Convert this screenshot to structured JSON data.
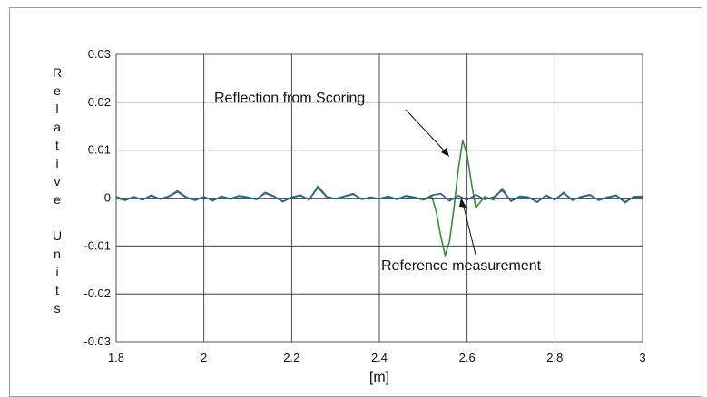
{
  "chart_data": {
    "type": "line",
    "xlabel": "[m]",
    "ylabel": "Relative Units",
    "xlim": [
      1.8,
      3.0
    ],
    "ylim": [
      -0.03,
      0.03
    ],
    "xticks": [
      "1.8",
      "2",
      "2.2",
      "2.4",
      "2.6",
      "2.8",
      "3"
    ],
    "yticks": [
      "0.03",
      "0.02",
      "0.01",
      "0",
      "-0.01",
      "-0.02",
      "-0.03"
    ],
    "grid": true,
    "annotations": [
      {
        "text": "Reflection from Scoring",
        "x": 2.59,
        "y": 0.009
      },
      {
        "text": "Reference measurement",
        "x": 2.56,
        "y": -0.001
      }
    ],
    "series": [
      {
        "color": "#3c8a3c",
        "x": [
          1.8,
          1.82,
          1.84,
          1.86,
          1.88,
          1.9,
          1.92,
          1.94,
          1.96,
          1.98,
          2.0,
          2.02,
          2.04,
          2.06,
          2.08,
          2.1,
          2.12,
          2.14,
          2.16,
          2.18,
          2.2,
          2.22,
          2.24,
          2.26,
          2.28,
          2.3,
          2.32,
          2.34,
          2.36,
          2.38,
          2.4,
          2.42,
          2.44,
          2.46,
          2.48,
          2.5,
          2.52,
          2.53,
          2.54,
          2.55,
          2.56,
          2.57,
          2.58,
          2.59,
          2.6,
          2.61,
          2.62,
          2.64,
          2.66,
          2.68,
          2.7,
          2.72,
          2.74,
          2.76,
          2.78,
          2.8,
          2.82,
          2.84,
          2.86,
          2.88,
          2.9,
          2.92,
          2.94,
          2.96,
          2.98,
          3.0
        ],
        "y": [
          0.0,
          -0.0005,
          0.0003,
          -0.0004,
          0.0006,
          -0.0002,
          0.0004,
          0.0015,
          0.0002,
          -0.0005,
          0.0003,
          -0.0006,
          0.0004,
          -0.0002,
          0.0005,
          0.0002,
          -0.0003,
          0.0012,
          0.0004,
          -0.0008,
          0.0002,
          0.0006,
          -0.0004,
          0.0025,
          0.0003,
          -0.0002,
          0.0004,
          0.0009,
          -0.0003,
          0.0002,
          -0.0002,
          0.0004,
          -0.0003,
          0.0005,
          0.0002,
          -0.0004,
          0.0003,
          -0.003,
          -0.008,
          -0.012,
          -0.009,
          -0.002,
          0.006,
          0.012,
          0.009,
          0.003,
          -0.002,
          0.0003,
          -0.0004,
          0.002,
          -0.0007,
          0.0004,
          0.0002,
          -0.0009,
          0.0006,
          -0.0004,
          0.0012,
          -0.0005,
          0.0003,
          0.0007,
          -0.0005,
          0.0002,
          0.0006,
          -0.001,
          0.0003,
          0.0004
        ]
      },
      {
        "color": "#2f5f8a",
        "x": [
          1.8,
          1.82,
          1.84,
          1.86,
          1.88,
          1.9,
          1.92,
          1.94,
          1.96,
          1.98,
          2.0,
          2.02,
          2.04,
          2.06,
          2.08,
          2.1,
          2.12,
          2.14,
          2.16,
          2.18,
          2.2,
          2.22,
          2.24,
          2.26,
          2.28,
          2.3,
          2.32,
          2.34,
          2.36,
          2.38,
          2.4,
          2.42,
          2.44,
          2.46,
          2.48,
          2.5,
          2.52,
          2.54,
          2.56,
          2.58,
          2.6,
          2.62,
          2.64,
          2.66,
          2.68,
          2.7,
          2.72,
          2.74,
          2.76,
          2.78,
          2.8,
          2.82,
          2.84,
          2.86,
          2.88,
          2.9,
          2.92,
          2.94,
          2.96,
          2.98,
          3.0
        ],
        "y": [
          0.0003,
          -0.0004,
          0.0002,
          -0.0003,
          0.0005,
          -0.0002,
          0.0003,
          0.0013,
          0.0001,
          -0.0004,
          0.0002,
          -0.0005,
          0.0003,
          -0.0001,
          0.0004,
          0.0001,
          -0.0002,
          0.001,
          0.0003,
          -0.0007,
          0.0001,
          0.0005,
          -0.0003,
          0.0022,
          0.0002,
          -0.0001,
          0.0003,
          0.0008,
          -0.0002,
          0.0001,
          -0.0001,
          0.0003,
          -0.0002,
          0.0004,
          0.0001,
          -0.0003,
          0.0006,
          0.0009,
          -0.0006,
          0.0005,
          -0.0004,
          0.0007,
          -0.0003,
          0.0002,
          0.0016,
          -0.0006,
          0.0003,
          0.0001,
          -0.0008,
          0.0005,
          -0.0003,
          0.001,
          -0.0004,
          0.0002,
          0.0006,
          -0.0004,
          0.0001,
          0.0005,
          -0.0008,
          0.0002,
          0.0003
        ]
      }
    ]
  }
}
